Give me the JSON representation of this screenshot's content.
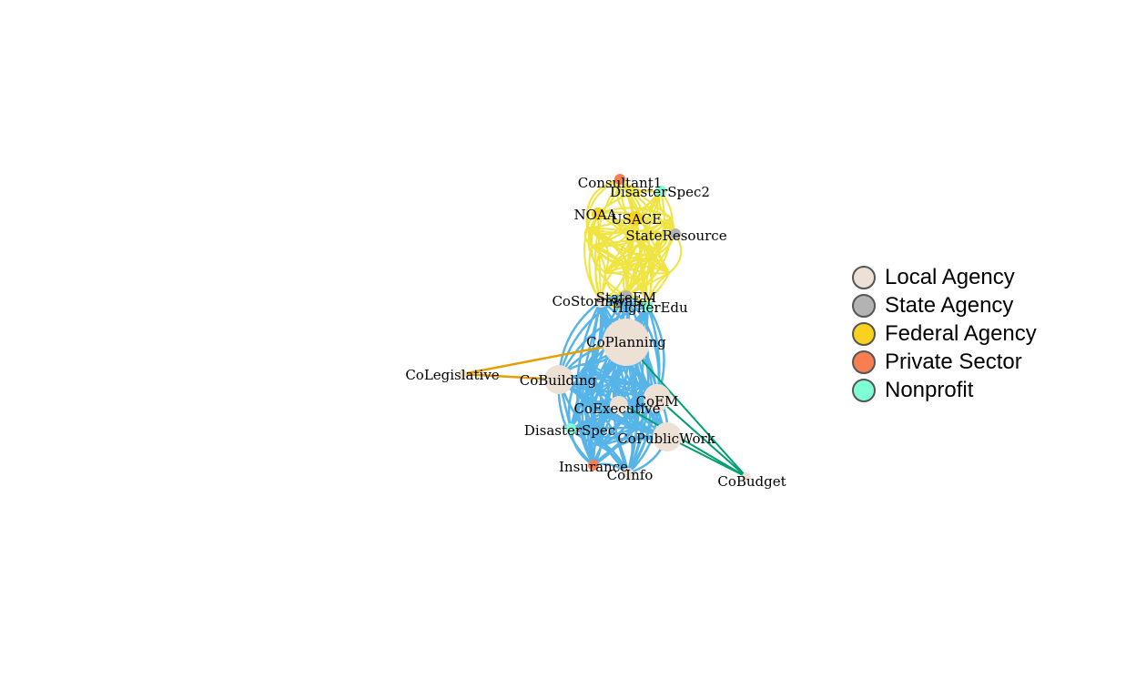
{
  "colors": {
    "local_agency": "#ede0d4",
    "state_agency": "#b3b3b3",
    "federal_agency": "#f8d21c",
    "private_sector": "#f87d51",
    "nonprofit": "#7ffed6",
    "edge_yellow": "#f0e442",
    "edge_blue": "#56b4e9",
    "edge_orange": "#e69f00",
    "edge_green": "#009e73"
  },
  "legend": [
    {
      "label": "Local Agency",
      "color": "#ede0d4"
    },
    {
      "label": "State Agency",
      "color": "#b3b3b3"
    },
    {
      "label": "Federal Agency",
      "color": "#f8d21c"
    },
    {
      "label": "Private Sector",
      "color": "#f87d51"
    },
    {
      "label": "Nonprofit",
      "color": "#7ffed6"
    }
  ],
  "nodes": [
    {
      "id": "Consultant1",
      "label": "Consultant1",
      "type": "Private Sector"
    },
    {
      "id": "DisasterSpec2",
      "label": "DisasterSpec2",
      "type": "Nonprofit"
    },
    {
      "id": "NOAA",
      "label": "NOAA",
      "type": "Federal Agency"
    },
    {
      "id": "USACE",
      "label": "USACE",
      "type": "Federal Agency"
    },
    {
      "id": "StateResource",
      "label": "StateResource",
      "type": "State Agency"
    },
    {
      "id": "StateEM",
      "label": "StateEM",
      "type": "State Agency"
    },
    {
      "id": "CoStormwater",
      "label": "CoStormwater",
      "type": "Local Agency"
    },
    {
      "id": "HigherEdu",
      "label": "HigherEdu",
      "type": "Nonprofit"
    },
    {
      "id": "CoPlanning",
      "label": "CoPlanning",
      "type": "Local Agency"
    },
    {
      "id": "CoLegislative",
      "label": "CoLegislative",
      "type": "Local Agency"
    },
    {
      "id": "CoBuilding",
      "label": "CoBuilding",
      "type": "Local Agency"
    },
    {
      "id": "CoEM",
      "label": "CoEM",
      "type": "Local Agency"
    },
    {
      "id": "CoExecutive",
      "label": "CoExecutive",
      "type": "Local Agency"
    },
    {
      "id": "DisasterSpec",
      "label": "DisasterSpec",
      "type": "Nonprofit"
    },
    {
      "id": "CoPublicWork",
      "label": "CoPublicWork",
      "type": "Local Agency"
    },
    {
      "id": "Insurance",
      "label": "Insurance",
      "type": "Private Sector"
    },
    {
      "id": "CoInfo",
      "label": "CoInfo",
      "type": "Local Agency"
    },
    {
      "id": "CoBudget",
      "label": "CoBudget",
      "type": "Local Agency"
    }
  ]
}
